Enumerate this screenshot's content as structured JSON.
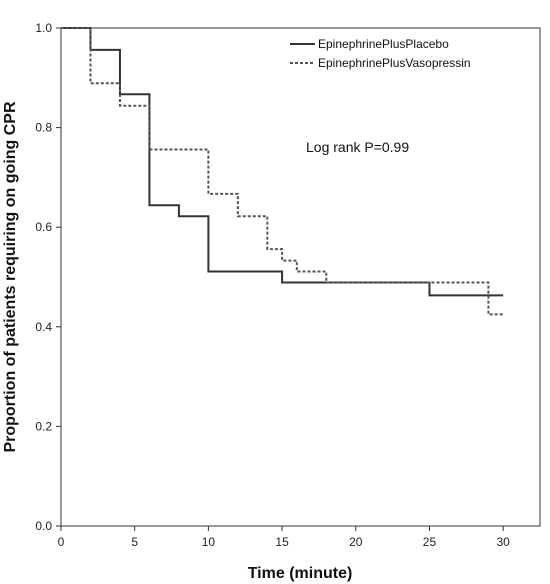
{
  "chart_data": {
    "type": "line",
    "step": true,
    "title": "",
    "xlabel": "Time (minute)",
    "ylabel": "Proportion of patients requiring on going CPR",
    "xlim": [
      0,
      32.5
    ],
    "ylim": [
      0,
      1.0
    ],
    "xticks": [
      0,
      5,
      10,
      15,
      20,
      25,
      30
    ],
    "yticks": [
      0.0,
      0.2,
      0.4,
      0.6,
      0.8,
      1.0
    ],
    "xtick_labels": [
      "0",
      "5",
      "10",
      "15",
      "20",
      "25",
      "30"
    ],
    "ytick_labels": [
      "0.0",
      "0.2",
      "0.4",
      "0.6",
      "0.8",
      "1.0"
    ],
    "grid": false,
    "legend_position": "top-right",
    "annotation": "Log rank P=0.99",
    "series": [
      {
        "name": "EpinephrinePlusPlacebo",
        "line_style": "solid",
        "color": "#333333",
        "points": [
          [
            0,
            1.0
          ],
          [
            2,
            0.956
          ],
          [
            4,
            0.867
          ],
          [
            6,
            0.644
          ],
          [
            8,
            0.622
          ],
          [
            10,
            0.511
          ],
          [
            15,
            0.489
          ],
          [
            25,
            0.463
          ],
          [
            30,
            0.463
          ]
        ]
      },
      {
        "name": "EpinephrinePlusVasopressin",
        "line_style": "dashed",
        "color": "#555555",
        "points": [
          [
            0,
            1.0
          ],
          [
            2,
            0.889
          ],
          [
            4,
            0.844
          ],
          [
            6,
            0.756
          ],
          [
            10,
            0.667
          ],
          [
            12,
            0.622
          ],
          [
            14,
            0.556
          ],
          [
            15,
            0.533
          ],
          [
            16,
            0.511
          ],
          [
            18,
            0.489
          ],
          [
            29,
            0.425
          ],
          [
            30,
            0.425
          ]
        ]
      }
    ]
  }
}
